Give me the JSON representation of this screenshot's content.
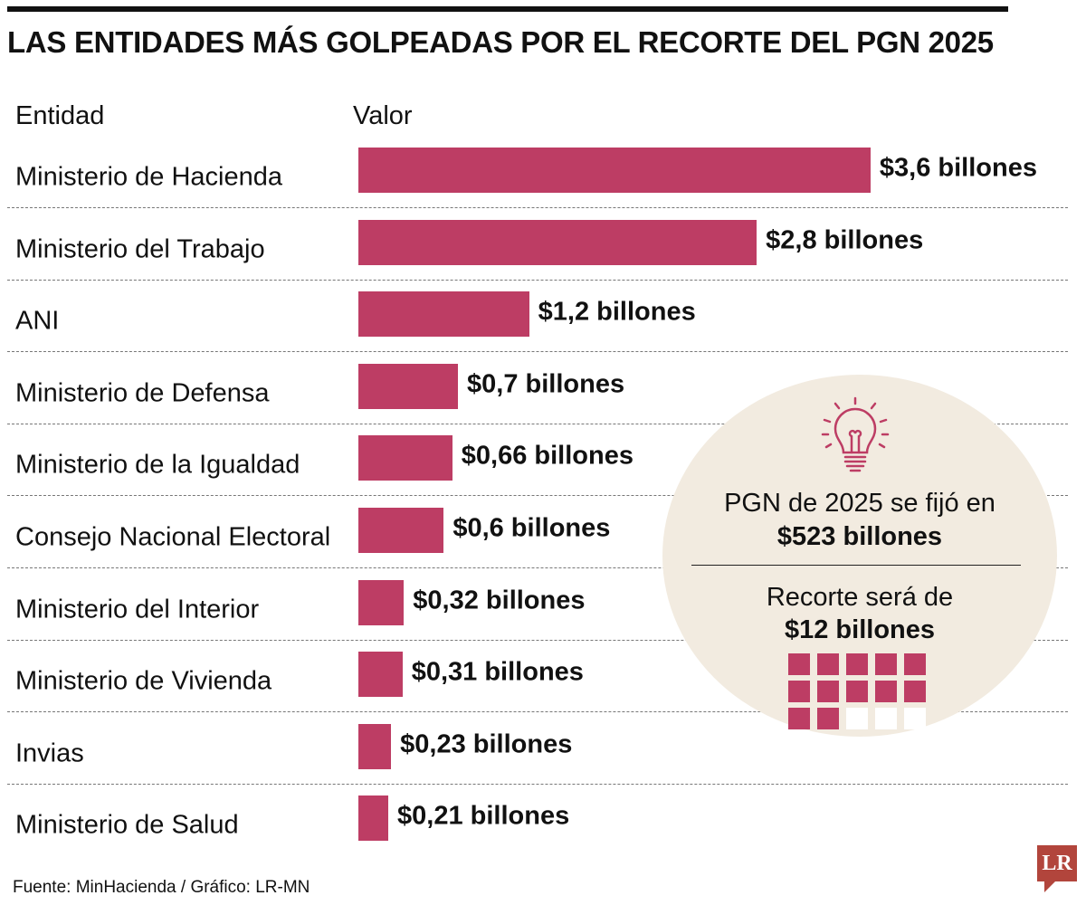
{
  "title": "LAS ENTIDADES MÁS GOLPEADAS POR EL RECORTE DEL PGN 2025",
  "chart_data": {
    "type": "bar",
    "orientation": "horizontal",
    "title": "LAS ENTIDADES MÁS GOLPEADAS POR EL RECORTE DEL PGN 2025",
    "column_headers": {
      "category": "Entidad",
      "value": "Valor"
    },
    "categories": [
      "Ministerio de Hacienda",
      "Ministerio del Trabajo",
      "ANI",
      "Ministerio de Defensa",
      "Ministerio de la Igualdad",
      "Consejo Nacional Electoral",
      "Ministerio del Interior",
      "Ministerio de Vivienda",
      "Invias",
      "Ministerio de Salud"
    ],
    "values": [
      3.6,
      2.8,
      1.2,
      0.7,
      0.66,
      0.6,
      0.32,
      0.31,
      0.23,
      0.21
    ],
    "value_labels": [
      "$3,6 billones",
      "$2,8 billones",
      "$1,2 billones",
      "$0,7 billones",
      "$0,66 billones",
      "$0,6 billones",
      "$0,32 billones",
      "$0,31 billones",
      "$0,23 billones",
      "$0,21 billones"
    ],
    "unit": "billones",
    "bar_color": "#bd3d64",
    "grid": false
  },
  "callout": {
    "icon": "lightbulb-icon",
    "line1": "PGN de 2025 se fijó en",
    "line2": "$523 billones",
    "line3": "Recorte será de",
    "line4": "$12 billones",
    "squares_filled": 12,
    "squares_total": 15,
    "background": "#f2ebe0"
  },
  "source": "Fuente: MinHacienda / Gráfico: LR-MN",
  "logo": "LR"
}
